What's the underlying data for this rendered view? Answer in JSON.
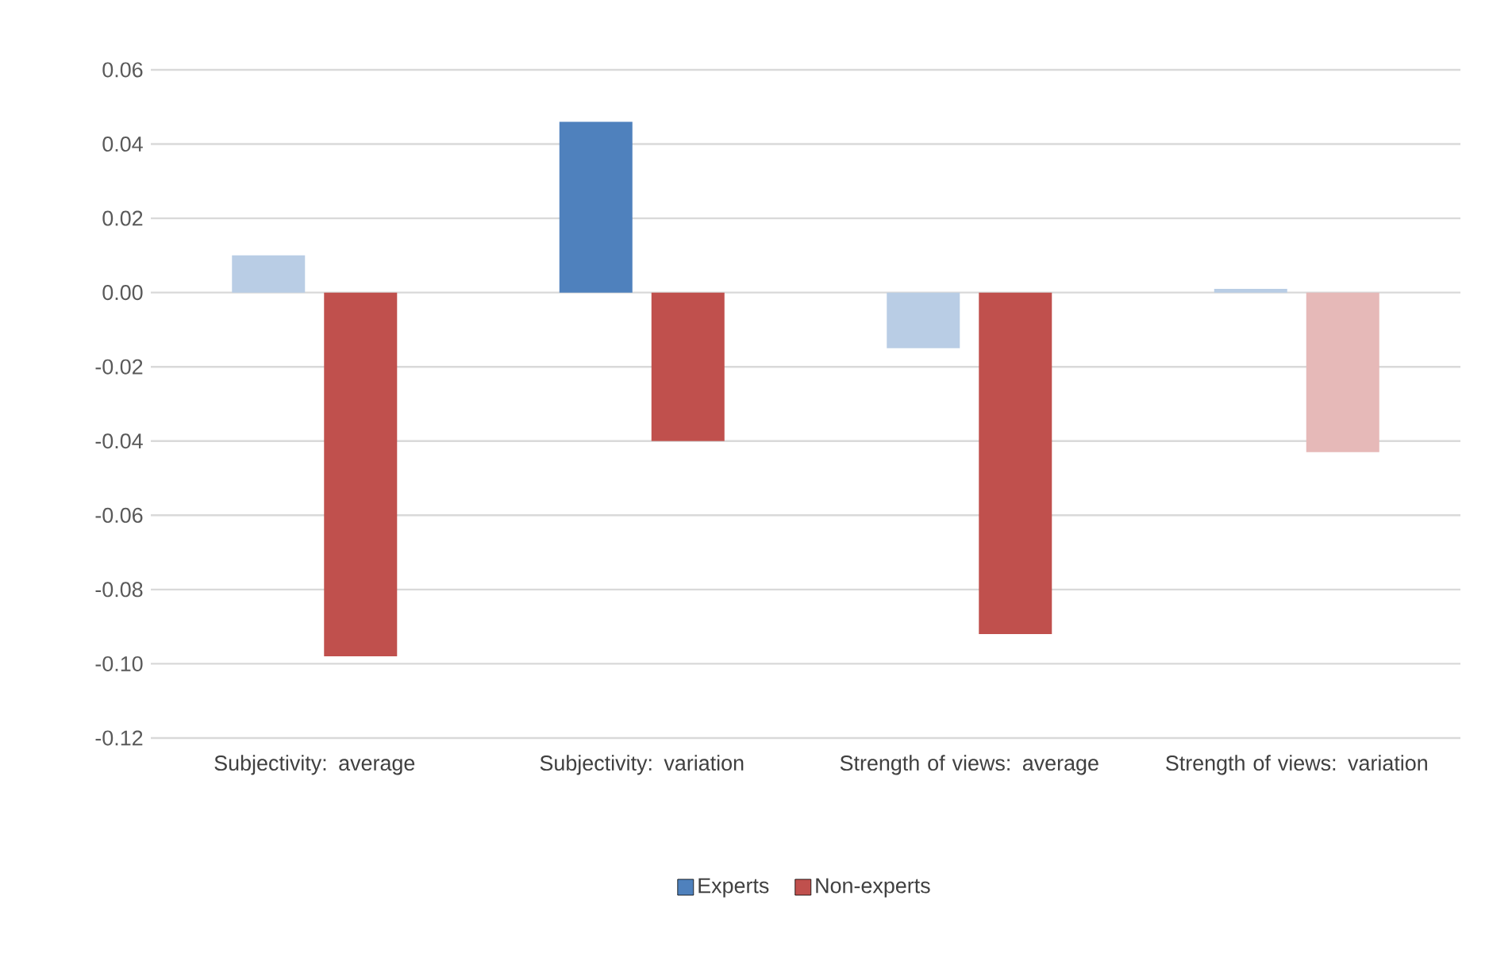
{
  "chart_data": {
    "type": "bar",
    "categories": [
      "Subjectivity: average",
      "Subjectivity: variation",
      "Strength of views: average",
      "Strength of views: variation"
    ],
    "series": [
      {
        "name": "Experts",
        "color": "#4f81bd",
        "colors": [
          "#b9cde5",
          "#4f81bd",
          "#b9cde5",
          "#b9cde5"
        ],
        "values": [
          0.01,
          0.046,
          -0.015,
          0.001
        ]
      },
      {
        "name": "Non-experts",
        "color": "#c0504d",
        "colors": [
          "#c0504d",
          "#c0504d",
          "#c0504d",
          "#e6b9b8"
        ],
        "values": [
          -0.098,
          -0.04,
          -0.092,
          -0.043
        ]
      }
    ],
    "ylim": [
      -0.12,
      0.06
    ],
    "yticks": [
      {
        "value": -0.12,
        "label": "-0.12"
      },
      {
        "value": -0.1,
        "label": "-0.10"
      },
      {
        "value": -0.08,
        "label": "-0.08"
      },
      {
        "value": -0.06,
        "label": "-0.06"
      },
      {
        "value": -0.04,
        "label": "-0.04"
      },
      {
        "value": -0.02,
        "label": "-0.02"
      },
      {
        "value": 0,
        "label": "0.00"
      },
      {
        "value": 0.02,
        "label": "0.02"
      },
      {
        "value": 0.04,
        "label": "0.04"
      },
      {
        "value": 0.06,
        "label": "0.06"
      }
    ],
    "grid": "y",
    "legend": "bottom"
  }
}
